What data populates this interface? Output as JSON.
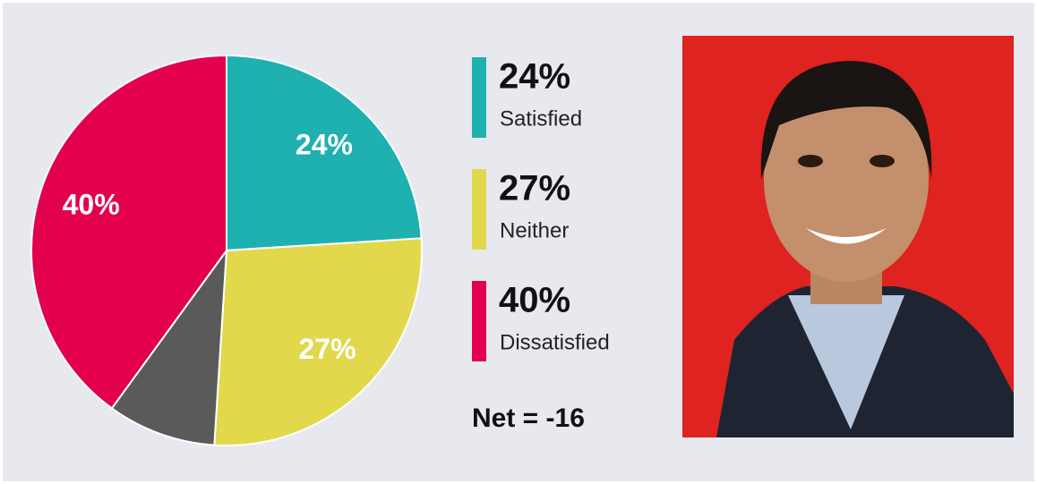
{
  "chart_data": {
    "type": "pie",
    "categories": [
      "Satisfied",
      "Neither",
      null,
      "Dissatisfied"
    ],
    "values": [
      24,
      27,
      9,
      40
    ],
    "value_labels": [
      "24%",
      "27%",
      null,
      "40%"
    ],
    "colors": [
      "#1fb0b0",
      "#e2d84c",
      "#5a5a5a",
      "#e2004f"
    ],
    "annotation": "Net = -16"
  }
}
